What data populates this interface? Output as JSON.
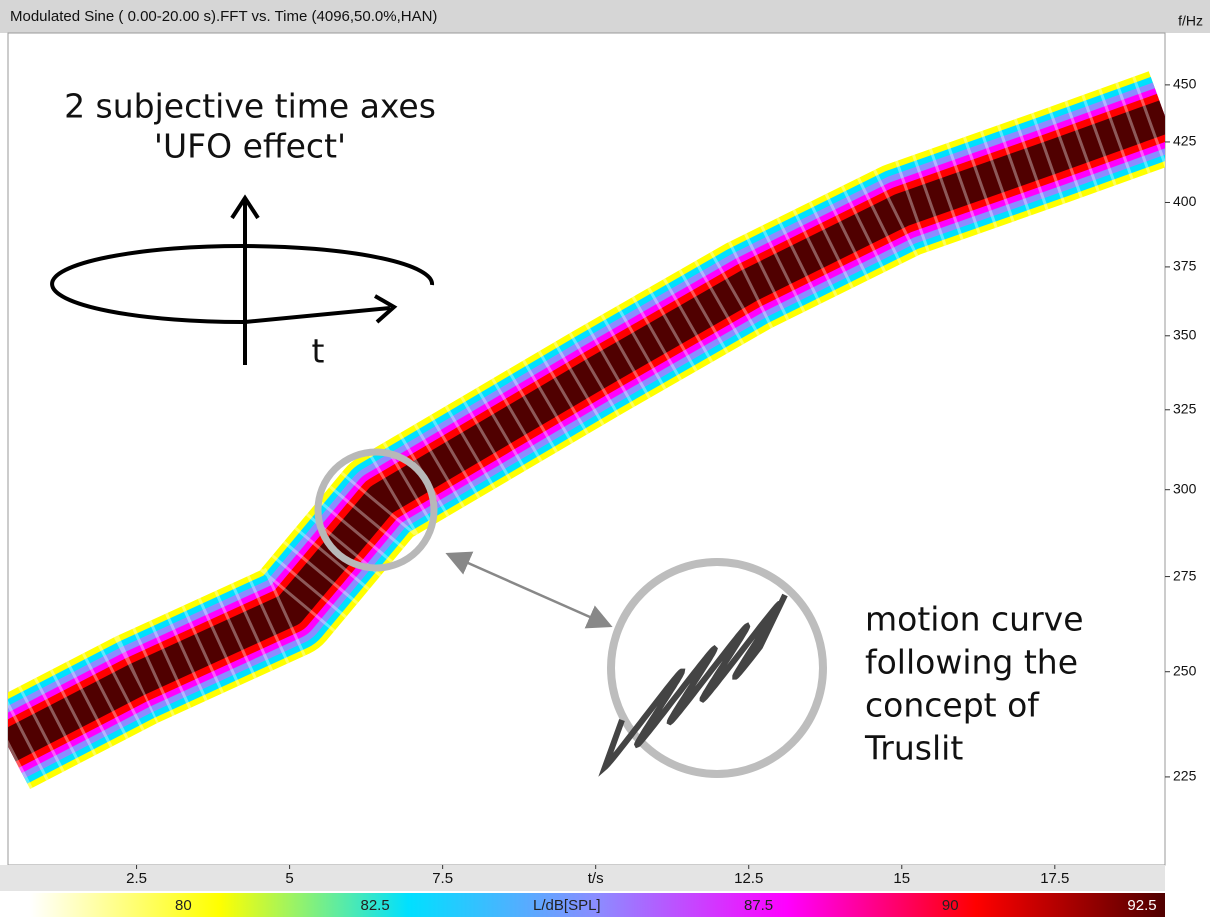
{
  "chart_data": {
    "type": "spectrogram",
    "title": "Modulated Sine ( 0.00-20.00 s).FFT vs. Time (4096,50.0%,HAN)",
    "y_label": "f/Hz",
    "log_y": true,
    "xlim": [
      0.4,
      19.3
    ],
    "ylim": [
      206,
      474
    ],
    "xticks": [
      2.5,
      5,
      7.5,
      {
        "value": 10,
        "label": "t/s"
      },
      12.5,
      15,
      17.5
    ],
    "yticks": [
      225,
      250,
      275,
      300,
      325,
      350,
      375,
      400,
      425,
      450
    ],
    "x": [
      0.4,
      2.5,
      5,
      6.5,
      10,
      12.5,
      15,
      17.5,
      19.3
    ],
    "values": [
      232,
      248,
      266,
      297,
      337,
      368,
      397,
      419,
      436
    ],
    "clim": [
      78,
      92.8
    ],
    "cticks": [
      80,
      82.5,
      {
        "value": 85,
        "label": "L/dB[SPL]"
      },
      87.5,
      90,
      92.5
    ],
    "colormap": [
      "#ffffff",
      "#ffff00",
      "#00e0ff",
      "#8c8cff",
      "#ff00ff",
      "#ff0000",
      "#500000"
    ],
    "annotations": [
      "2 subjective time axes",
      "'UFO effect'",
      "t",
      "motion curve",
      "following the",
      "concept of",
      "Truslit"
    ]
  }
}
